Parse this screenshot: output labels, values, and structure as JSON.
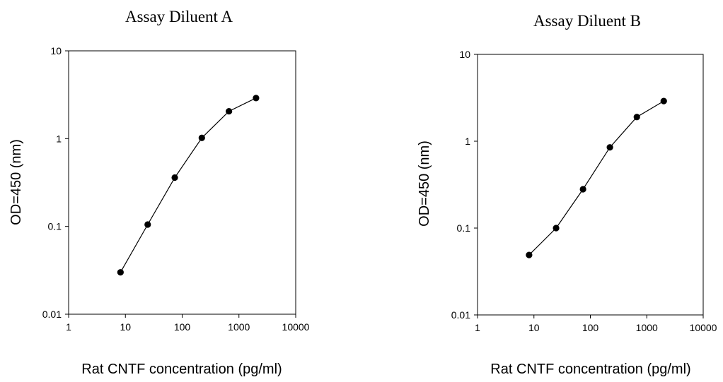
{
  "chart_data": [
    {
      "type": "line",
      "title": "Assay Diluent A",
      "xlabel": "Rat CNTF concentration (pg/ml)",
      "ylabel": "OD=450 (nm)",
      "xscale": "log",
      "yscale": "log",
      "xlim": [
        1,
        10000
      ],
      "ylim": [
        0.01,
        10
      ],
      "xticks": [
        "1",
        "10",
        "100",
        "1000",
        "10000"
      ],
      "yticks": [
        "0.01",
        "0.1",
        "1",
        "10"
      ],
      "grid": false,
      "legend": "none",
      "marker": "circle",
      "color": "#000000",
      "series": [
        {
          "x": [
            8.2,
            24.7,
            74.1,
            222,
            667,
            2000
          ],
          "y": [
            0.03,
            0.105,
            0.36,
            1.02,
            2.05,
            2.9
          ]
        }
      ]
    },
    {
      "type": "line",
      "title": "Assay Diluent B",
      "xlabel": "Rat CNTF concentration (pg/ml)",
      "ylabel": "OD=450 (nm)",
      "xscale": "log",
      "yscale": "log",
      "xlim": [
        1,
        10000
      ],
      "ylim": [
        0.01,
        10
      ],
      "xticks": [
        "1",
        "10",
        "100",
        "1000",
        "10000"
      ],
      "yticks": [
        "0.01",
        "0.1",
        "1",
        "10"
      ],
      "grid": false,
      "legend": "none",
      "marker": "circle",
      "color": "#000000",
      "series": [
        {
          "x": [
            8.2,
            24.7,
            74.1,
            222,
            667,
            2000
          ],
          "y": [
            0.049,
            0.1,
            0.28,
            0.85,
            1.9,
            2.9
          ]
        }
      ]
    }
  ]
}
